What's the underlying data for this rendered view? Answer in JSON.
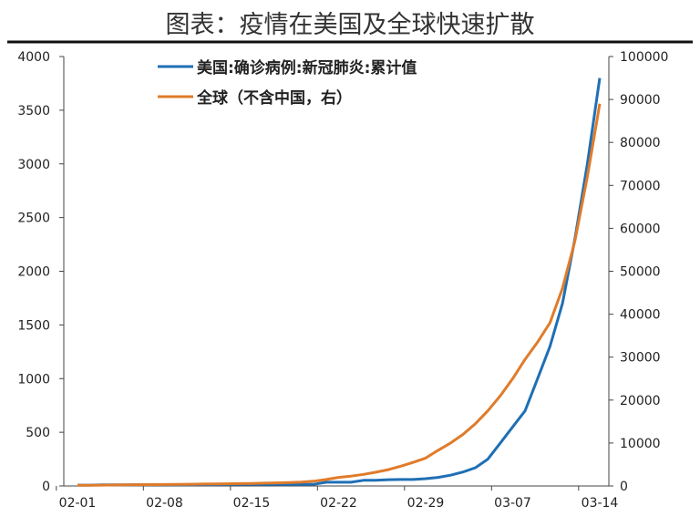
{
  "chart_data": {
    "type": "line",
    "title": "图表：疫情在美国及全球快速扩散",
    "x": [
      "02-01",
      "02-02",
      "02-03",
      "02-04",
      "02-05",
      "02-06",
      "02-07",
      "02-08",
      "02-09",
      "02-10",
      "02-11",
      "02-12",
      "02-13",
      "02-14",
      "02-15",
      "02-16",
      "02-17",
      "02-18",
      "02-19",
      "02-20",
      "02-21",
      "02-22",
      "02-23",
      "02-24",
      "02-25",
      "02-26",
      "02-27",
      "02-28",
      "02-29",
      "03-01",
      "03-02",
      "03-03",
      "03-04",
      "03-05",
      "03-06",
      "03-07",
      "03-08",
      "03-09",
      "03-10",
      "03-11",
      "03-12",
      "03-13",
      "03-14"
    ],
    "x_tick_labels": [
      "02-01",
      "02-08",
      "02-15",
      "02-22",
      "02-29",
      "03-07",
      "03-14"
    ],
    "y_left": {
      "range": [
        0,
        4000
      ],
      "ticks": [
        "0",
        "500",
        "1000",
        "1500",
        "2000",
        "2500",
        "3000",
        "3500",
        "4000"
      ]
    },
    "y_right": {
      "range": [
        0,
        100000
      ],
      "ticks": [
        "0",
        "10000",
        "20000",
        "30000",
        "40000",
        "50000",
        "60000",
        "70000",
        "80000",
        "90000",
        "100000"
      ]
    },
    "grid": false,
    "legend_position": "top",
    "series": [
      {
        "name": "美国:确诊病例:新冠肺炎:累计值",
        "axis": "left",
        "color": "#1f6fb5",
        "values": [
          8,
          8,
          11,
          11,
          11,
          12,
          12,
          12,
          12,
          12,
          13,
          13,
          14,
          15,
          15,
          15,
          15,
          15,
          15,
          15,
          35,
          35,
          35,
          53,
          53,
          59,
          60,
          60,
          68,
          80,
          100,
          130,
          170,
          250,
          400,
          550,
          700,
          1000,
          1300,
          1700,
          2300,
          3000,
          3800
        ]
      },
      {
        "name": "全球（不含中国，右）",
        "axis": "right",
        "color": "#e07b2a",
        "values": [
          150,
          170,
          200,
          230,
          260,
          290,
          320,
          350,
          380,
          410,
          440,
          480,
          520,
          560,
          600,
          650,
          720,
          800,
          900,
          1100,
          1500,
          2000,
          2300,
          2700,
          3200,
          3800,
          4600,
          5500,
          6500,
          8300,
          10000,
          12000,
          14500,
          17500,
          21000,
          25000,
          29500,
          33500,
          38000,
          46000,
          57000,
          72000,
          89000
        ]
      }
    ]
  }
}
